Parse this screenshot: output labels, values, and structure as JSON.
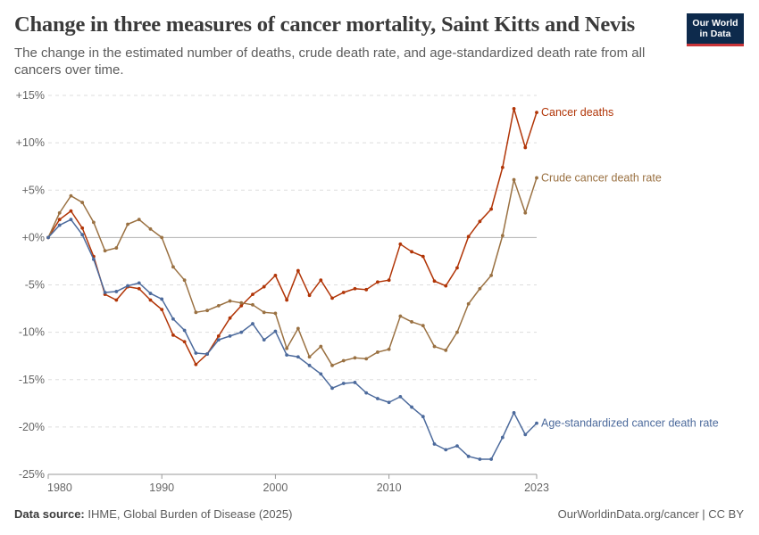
{
  "header": {
    "title": "Change in three measures of cancer mortality, Saint Kitts and Nevis",
    "subtitle": "The change in the estimated number of deaths, crude death rate, and age-standardized death rate from all cancers over time.",
    "logo_line1": "Our World",
    "logo_line2": "in Data"
  },
  "footer": {
    "source_label": "Data source:",
    "source_text": "IHME, Global Burden of Disease (2025)",
    "credit": "OurWorldinData.org/cancer | CC BY"
  },
  "colors": {
    "cancer_deaths": "#b13507",
    "crude_rate": "#9a7142",
    "age_standardized": "#4c6a9c",
    "grid": "#dddddd",
    "zero_line": "#b0b0b0"
  },
  "chart_data": {
    "type": "line",
    "ylim": [
      -25,
      15
    ],
    "xlim": [
      1980,
      2023
    ],
    "y_ticks": [
      15,
      10,
      5,
      0,
      -5,
      -10,
      -15,
      -20,
      -25
    ],
    "y_tick_labels": [
      "+15%",
      "+10%",
      "+5%",
      "+0%",
      "-5%",
      "-10%",
      "-15%",
      "-20%",
      "-25%"
    ],
    "x_ticks": [
      1980,
      1990,
      2000,
      2010,
      2023
    ],
    "x_tick_labels": [
      "1980",
      "1990",
      "2000",
      "2010",
      "2023"
    ],
    "grid": "horizontal dashed",
    "legend": "inline labels at line ends",
    "x": [
      1980,
      1981,
      1982,
      1983,
      1984,
      1985,
      1986,
      1987,
      1988,
      1989,
      1990,
      1991,
      1992,
      1993,
      1994,
      1995,
      1996,
      1997,
      1998,
      1999,
      2000,
      2001,
      2002,
      2003,
      2004,
      2005,
      2006,
      2007,
      2008,
      2009,
      2010,
      2011,
      2012,
      2013,
      2014,
      2015,
      2016,
      2017,
      2018,
      2019,
      2020,
      2021,
      2022,
      2023
    ],
    "series": [
      {
        "name": "Cancer deaths",
        "color_key": "cancer_deaths",
        "values": [
          0,
          1.9,
          2.8,
          1.0,
          -2.0,
          -6.0,
          -6.6,
          -5.2,
          -5.4,
          -6.6,
          -7.6,
          -10.3,
          -11.0,
          -13.4,
          -12.3,
          -10.4,
          -8.5,
          -7.2,
          -6.0,
          -5.2,
          -4.0,
          -6.6,
          -3.5,
          -6.1,
          -4.5,
          -6.4,
          -5.8,
          -5.4,
          -5.5,
          -4.7,
          -4.5,
          -0.7,
          -1.5,
          -2.0,
          -4.6,
          -5.1,
          -3.2,
          0.1,
          1.7,
          3.0,
          7.4,
          13.6,
          9.5,
          13.2
        ]
      },
      {
        "name": "Crude cancer death rate",
        "color_key": "crude_rate",
        "values": [
          0,
          2.6,
          4.4,
          3.7,
          1.6,
          -1.4,
          -1.1,
          1.4,
          1.9,
          0.9,
          0.0,
          -3.1,
          -4.5,
          -7.9,
          -7.7,
          -7.2,
          -6.7,
          -6.9,
          -7.1,
          -7.9,
          -8.0,
          -11.7,
          -9.6,
          -12.6,
          -11.5,
          -13.5,
          -13.0,
          -12.7,
          -12.8,
          -12.1,
          -11.8,
          -8.3,
          -8.9,
          -9.3,
          -11.5,
          -11.9,
          -10.0,
          -7.0,
          -5.4,
          -4.0,
          0.2,
          6.1,
          2.6,
          6.3
        ]
      },
      {
        "name": "Age-standardized cancer death rate",
        "color_key": "age_standardized",
        "values": [
          0,
          1.3,
          1.9,
          0.3,
          -2.3,
          -5.8,
          -5.7,
          -5.1,
          -4.8,
          -5.9,
          -6.5,
          -8.6,
          -9.8,
          -12.2,
          -12.3,
          -10.8,
          -10.4,
          -10.0,
          -9.1,
          -10.8,
          -9.9,
          -12.4,
          -12.6,
          -13.5,
          -14.4,
          -15.9,
          -15.4,
          -15.3,
          -16.4,
          -17.0,
          -17.4,
          -16.8,
          -17.9,
          -18.9,
          -21.8,
          -22.4,
          -22.0,
          -23.1,
          -23.4,
          -23.4,
          -21.1,
          -18.5,
          -20.8,
          -19.6
        ]
      }
    ]
  }
}
